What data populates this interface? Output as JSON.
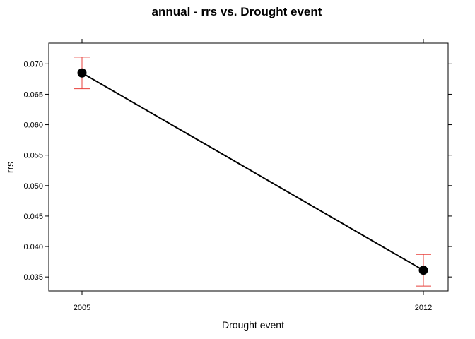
{
  "chart_data": {
    "type": "line",
    "title": "annual - rrs vs. Drought event",
    "xlabel": "Drought event",
    "ylabel": "rrs",
    "categories": [
      "2005",
      "2012"
    ],
    "series": [
      {
        "values": [
          0.0685,
          0.0361
        ],
        "lower": [
          0.0659,
          0.0335
        ],
        "upper": [
          0.0711,
          0.0387
        ],
        "color": "#000000",
        "errorbar_color": "#e8413c"
      }
    ],
    "yticks": [
      "0.035",
      "0.040",
      "0.045",
      "0.050",
      "0.055",
      "0.060",
      "0.065",
      "0.070"
    ],
    "ylim": [
      0.0327,
      0.0734
    ],
    "grid": false,
    "legend": "none"
  }
}
